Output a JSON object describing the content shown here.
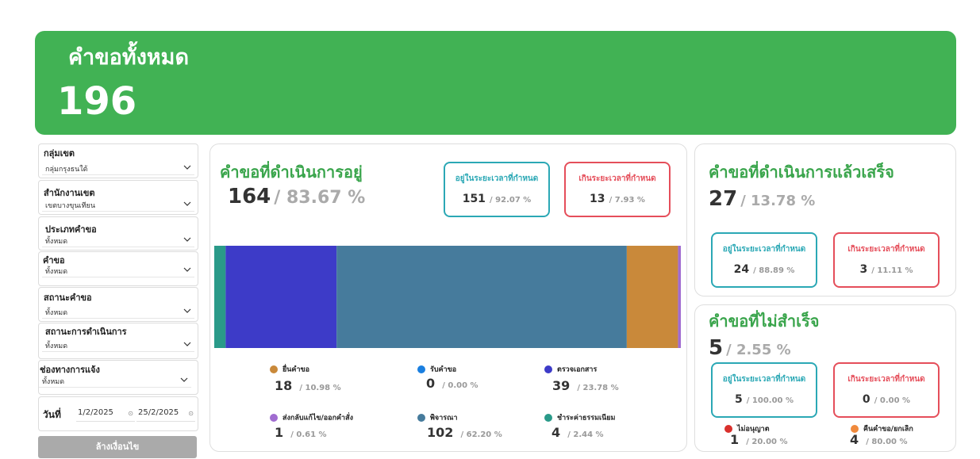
{
  "header": {
    "title": "คำขอทั้งหมด",
    "total": "196",
    "color": "#41b254"
  },
  "filters": [
    {
      "label": "กลุ่มเขต",
      "value": "กลุ่มกรุงธนใต้"
    },
    {
      "label": "สำนักงานเขต",
      "value": "เขตบางขุนเทียน"
    },
    {
      "label": "ประเภทคำขอ",
      "value": "ทั้งหมด"
    },
    {
      "label": "คำขอ",
      "value": "ทั้งหมด"
    },
    {
      "label": "สถานะคำขอ",
      "value": "ทั้งหมด"
    },
    {
      "label": "สถานะการดำเนินการ",
      "value": "ทั้งหมด"
    },
    {
      "label": "ช่องทางการแจ้ง",
      "value": "ทั้งหมด"
    }
  ],
  "date_filter": {
    "label": "วันที่",
    "start": "1/2/2025",
    "end": "25/2/2025"
  },
  "clear_button": "ล้างเงื่อนไข",
  "in_progress": {
    "title": "คำขอที่ดำเนินการอยู่",
    "count": "164",
    "percent": "83.67 %",
    "on_time": {
      "title": "อยู่ในระยะเวลาที่กำหนด",
      "count": "151",
      "percent": "/ 92.07 %"
    },
    "overdue": {
      "title": "เกินระยะเวลาที่กำหนด",
      "count": "13",
      "percent": "/ 7.93 %"
    },
    "chart_data": {
      "type": "bar",
      "orientation": "horizontal-stacked-100",
      "categories": [
        "ยื่นคำขอ",
        "รับคำขอ",
        "ตรวจเอกสาร",
        "ส่งกลับแก้ไข/ออกคำสั่ง",
        "พิจารณา",
        "ชำระค่าธรรมเนียม"
      ],
      "series": [
        {
          "name": "ยื่นคำขอ",
          "value": 18,
          "percent": "/ 10.98 %",
          "color": "#c9893a"
        },
        {
          "name": "รับคำขอ",
          "value": 0,
          "percent": "/ 0.00 %",
          "color": "#1a7fe0"
        },
        {
          "name": "ตรวจเอกสาร",
          "value": 39,
          "percent": "/ 23.78 %",
          "color": "#3d3bc8"
        },
        {
          "name": "ส่งกลับแก้ไข/ออกคำสั่ง",
          "value": 1,
          "percent": "/ 0.61 %",
          "color": "#a06cd0"
        },
        {
          "name": "พิจารณา",
          "value": 102,
          "percent": "/ 62.20 %",
          "color": "#467b9c"
        },
        {
          "name": "ชำระค่าธรรมเนียม",
          "value": 4,
          "percent": "/ 2.44 %",
          "color": "#2a9a89"
        }
      ],
      "stack_order": [
        "ชำระค่าธรรมเนียม",
        "ตรวจเอกสาร",
        "พิจารณา",
        "ยื่นคำขอ",
        "ส่งกลับแก้ไข/ออกคำสั่ง"
      ],
      "legend": "bottom"
    }
  },
  "completed": {
    "title": "คำขอที่ดำเนินการแล้วเสร็จ",
    "count": "27",
    "percent": "13.78 %",
    "on_time": {
      "title": "อยู่ในระยะเวลาที่กำหนด",
      "count": "24",
      "percent": "/ 88.89 %"
    },
    "overdue": {
      "title": "เกินระยะเวลาที่กำหนด",
      "count": "3",
      "percent": "/ 11.11 %"
    }
  },
  "failed": {
    "title": "คำขอที่ไม่สำเร็จ",
    "count": "5",
    "percent": "2.55 %",
    "on_time": {
      "title": "อยู่ในระยะเวลาที่กำหนด",
      "count": "5",
      "percent": "/ 100.00 %"
    },
    "overdue": {
      "title": "เกินระยะเวลาที่กำหนด",
      "count": "0",
      "percent": "/ 0.00 %"
    },
    "breakdown": [
      {
        "label": "ไม่อนุญาต",
        "count": "1",
        "percent": "/ 20.00 %",
        "color": "#d9302c"
      },
      {
        "label": "คืนคำขอ/ยกเลิก",
        "count": "4",
        "percent": "/ 80.00 %",
        "color": "#f08a3c"
      }
    ]
  }
}
